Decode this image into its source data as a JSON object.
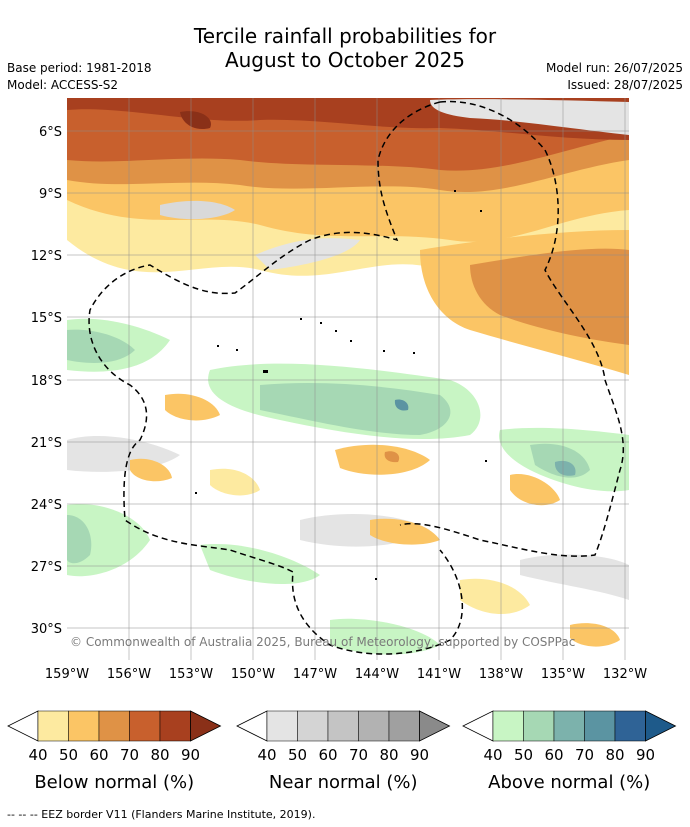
{
  "title_line1": "Tercile rainfall probabilities for",
  "title_line2": "August to October 2025",
  "base_period": "Base period: 1981-2018",
  "model": "Model: ACCESS-S2",
  "model_run": "Model run: 26/07/2025",
  "issued": "Issued: 28/07/2025",
  "copyright": "© Commonwealth of Australia 2025, Bureau of Meteorology, supported by COSPPac",
  "footnote": "--  --  -- EEZ border V11 (Flanders Marine Institute, 2019).",
  "lon_ticks": [
    "159°W",
    "156°W",
    "153°W",
    "150°W",
    "147°W",
    "144°W",
    "141°W",
    "138°W",
    "135°W",
    "132°W"
  ],
  "lat_ticks": [
    "6°S",
    "9°S",
    "12°S",
    "15°S",
    "18°S",
    "21°S",
    "24°S",
    "27°S",
    "30°S"
  ],
  "colorbars": [
    {
      "title": "Below normal (%)",
      "labels": [
        "40",
        "50",
        "60",
        "70",
        "80",
        "90"
      ],
      "colors": [
        "#fdeaa0",
        "#fbc565",
        "#df9246",
        "#c8602d",
        "#a8401f",
        "#8a3018"
      ]
    },
    {
      "title": "Near normal (%)",
      "labels": [
        "40",
        "50",
        "60",
        "70",
        "80",
        "90"
      ],
      "colors": [
        "#e4e4e4",
        "#d4d4d4",
        "#c4c4c4",
        "#b2b2b2",
        "#a0a0a0",
        "#8a8a8a"
      ]
    },
    {
      "title": "Above normal (%)",
      "labels": [
        "40",
        "50",
        "60",
        "70",
        "80",
        "90"
      ],
      "colors": [
        "#c8f5c4",
        "#a6d8b4",
        "#7cb2ac",
        "#5b94a2",
        "#2f6396",
        "#1e5a8a"
      ]
    }
  ]
}
